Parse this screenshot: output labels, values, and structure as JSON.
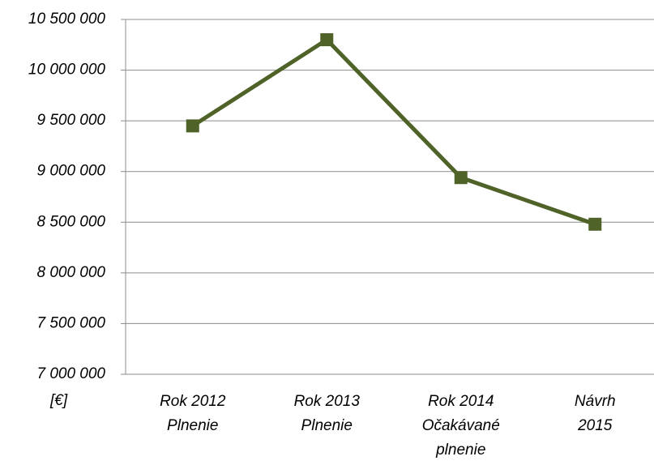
{
  "chart_data": {
    "type": "line",
    "y_unit_label": "[€]",
    "categories": [
      "Rok 2012\nPlnenie",
      "Rok 2013\nPlnenie",
      "Rok 2014\nOčakávané\nplnenie",
      "Návrh\n2015"
    ],
    "values": [
      9450000,
      10300000,
      8940000,
      8480000
    ],
    "color": "#4f6228",
    "ylim": [
      7000000,
      10500000
    ],
    "yticks": [
      {
        "value": 7000000,
        "label": "7 000 000"
      },
      {
        "value": 7500000,
        "label": "7 500 000"
      },
      {
        "value": 8000000,
        "label": "8 000 000"
      },
      {
        "value": 8500000,
        "label": "8 500 000"
      },
      {
        "value": 9000000,
        "label": "9 000 000"
      },
      {
        "value": 9500000,
        "label": "9 500 000"
      },
      {
        "value": 10000000,
        "label": "10 000 000"
      },
      {
        "value": 10500000,
        "label": "10 500 000"
      }
    ],
    "grid": true
  }
}
